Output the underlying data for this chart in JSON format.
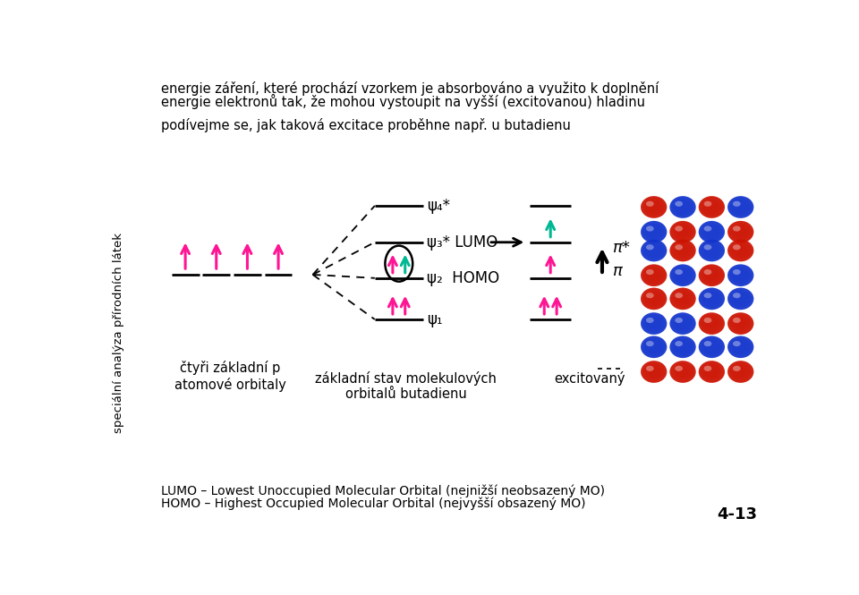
{
  "bg_color": "#ffffff",
  "arrow_color": "#ff1493",
  "cyan_color": "#00b894",
  "black_color": "#000000",
  "top_text1": "energie záření, které prochází vzorkem je absorbováno a využito k doplnění",
  "top_text2": "energie elektronů tak, že mohou vystoupit na vyšší (excitovanou) hladinu",
  "top_text3": "podívejme se, jak taková excitace proběhne např. u butadienu",
  "sidebar_text": "speciální analýza přírodních látek",
  "bottom_text1": "LUMO – Lowest Unoccupied Molecular Orbital (nejnižší neobsazený MO)",
  "bottom_text2": "HOMO – Highest Occupied Molecular Orbital (nejvyšší obsazený MO)",
  "page_num": "4-13",
  "label_4atoms": "čtyři základní p\natomové orbitaly",
  "label_mo": "základní stav molekulových\norbitalů butadienu",
  "label_excited": "excitovaný",
  "psi4_label": "ψ₄*",
  "psi3_label": "ψ₃* LUMO",
  "psi2_label": "ψ₂  HOMO",
  "psi1_label": "ψ₁",
  "pi_star_label": "π*",
  "pi_label": "π",
  "red_color": "#cc1100",
  "blue_color": "#1133cc"
}
